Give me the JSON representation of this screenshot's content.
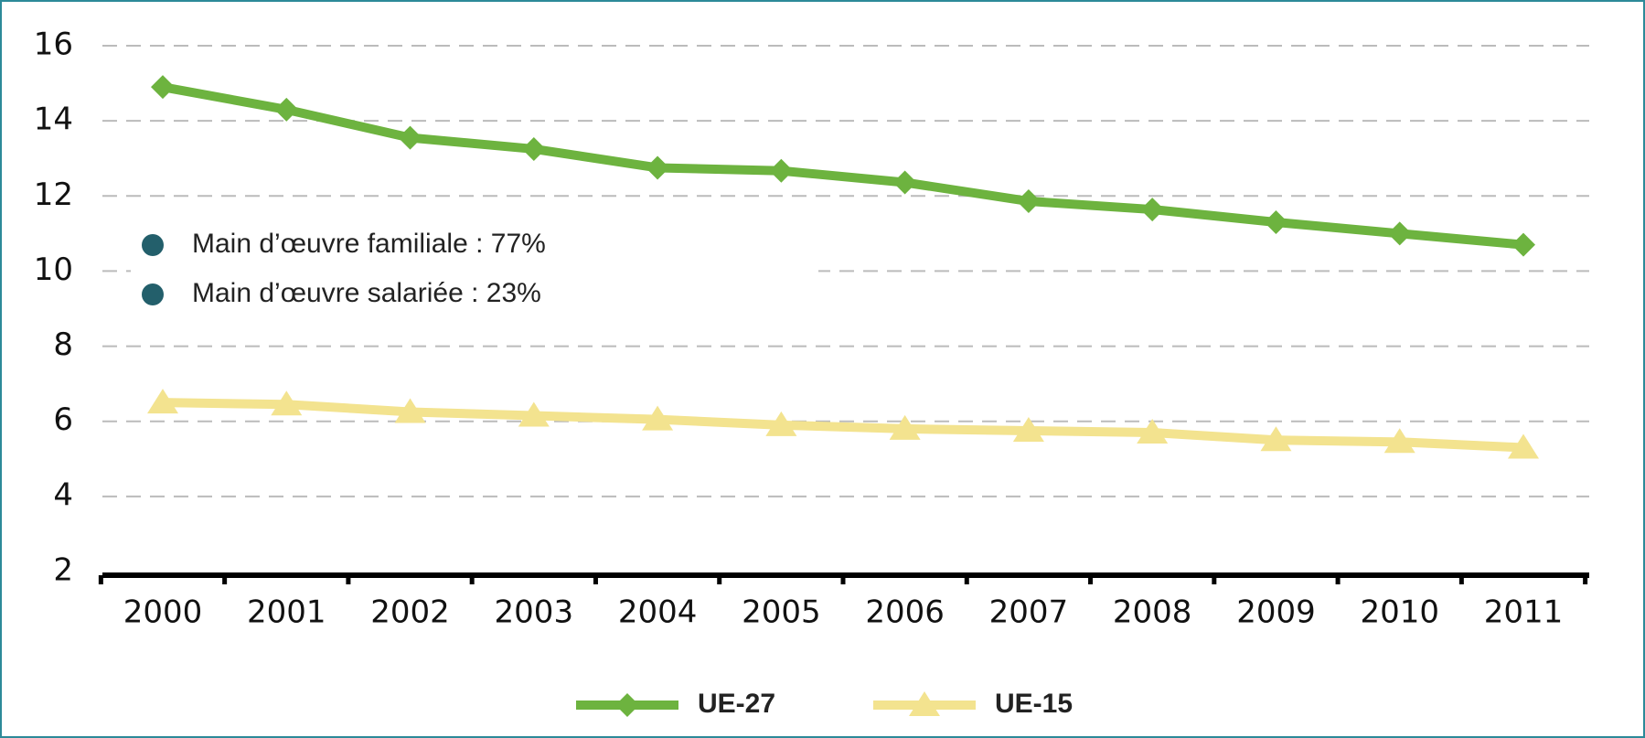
{
  "chart_data": {
    "type": "line",
    "categories": [
      "2000",
      "2001",
      "2002",
      "2003",
      "2004",
      "2005",
      "2006",
      "2007",
      "2008",
      "2009",
      "2010",
      "2011"
    ],
    "series": [
      {
        "name": "UE-27",
        "color": "#6db33f",
        "marker": "diamond",
        "values": [
          14.9,
          14.3,
          13.55,
          13.25,
          12.75,
          12.67,
          12.36,
          11.86,
          11.64,
          11.3,
          11.0,
          10.7
        ]
      },
      {
        "name": "UE-15",
        "color": "#f3e38f",
        "marker": "triangle",
        "values": [
          6.5,
          6.45,
          6.25,
          6.15,
          6.05,
          5.9,
          5.8,
          5.75,
          5.7,
          5.5,
          5.45,
          5.3
        ]
      }
    ],
    "ylim": [
      2,
      16
    ],
    "yticks": [
      2,
      4,
      6,
      8,
      10,
      12,
      14,
      16
    ],
    "grid": true,
    "annotations": [
      "Main d’œuvre familiale : 77%",
      "Main d’œuvre salariée : 23%"
    ],
    "annotation_color": "#235f6b",
    "legend": "bottom"
  }
}
